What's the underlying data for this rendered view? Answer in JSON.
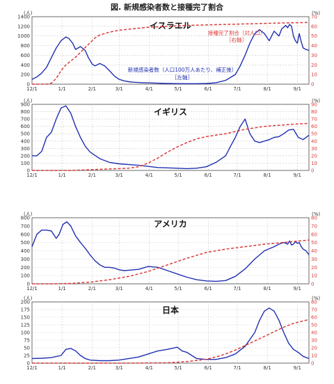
{
  "figure_title": "図. 新規感染者数と接種完了割合",
  "colors": {
    "cases": "#1f2fb0",
    "vaccination": "#d93a3a",
    "grid": "#c8c8c8",
    "axis": "#444444"
  },
  "chart_data": [
    {
      "type": "line",
      "title": "イスラエル",
      "left_unit": "(人)",
      "right_unit": "(%)",
      "x_ticks": [
        "12/1",
        "1/1",
        "2/1",
        "3/1",
        "4/1",
        "5/1",
        "6/1",
        "7/1",
        "8/1",
        "9/1"
      ],
      "ylim_left": [
        0,
        1400
      ],
      "yticks_left": [
        0,
        200,
        400,
        600,
        800,
        1000,
        1200,
        1400
      ],
      "ylim_right": [
        0,
        70
      ],
      "yticks_right": [
        0,
        10,
        20,
        30,
        40,
        50,
        60,
        70
      ],
      "annotations": [
        {
          "id": "vacc-label",
          "text": "接種完了割合（対人口）",
          "color": "vaccination"
        },
        {
          "id": "vacc-axis",
          "text": "［右軸］",
          "color": "vaccination"
        },
        {
          "id": "cases-label",
          "text": "新規感染者数（人口100万人あたり、補正後）",
          "color": "cases"
        },
        {
          "id": "cases-axis",
          "text": "［左軸］",
          "color": "cases"
        }
      ],
      "series": [
        {
          "axis": "left",
          "role": "cases",
          "x": [
            0,
            5,
            10,
            15,
            20,
            25,
            30,
            35,
            38,
            42,
            45,
            50,
            55,
            58,
            62,
            65,
            70,
            75,
            80,
            85,
            90,
            95,
            100,
            105,
            110,
            115,
            120,
            130,
            140,
            150,
            160,
            170,
            180,
            190,
            200,
            210,
            215,
            220,
            225,
            230,
            235,
            240,
            245,
            250,
            255,
            258,
            260,
            262,
            264,
            266,
            268,
            270,
            272,
            274,
            276,
            278,
            280,
            283,
            286
          ],
          "y": [
            100,
            150,
            230,
            350,
            550,
            750,
            900,
            980,
            950,
            850,
            720,
            780,
            700,
            560,
            420,
            380,
            430,
            380,
            280,
            170,
            100,
            70,
            50,
            40,
            35,
            30,
            28,
            20,
            15,
            12,
            10,
            10,
            15,
            30,
            80,
            200,
            380,
            600,
            850,
            1050,
            1130,
            1050,
            900,
            1100,
            1000,
            1150,
            1180,
            1220,
            1170,
            1240,
            1200,
            1000,
            900,
            850,
            1050,
            880,
            750,
            720,
            700
          ]
        },
        {
          "axis": "right",
          "role": "vaccination",
          "x": [
            0,
            15,
            20,
            25,
            30,
            35,
            40,
            45,
            50,
            55,
            60,
            65,
            70,
            80,
            90,
            100,
            110,
            120,
            140,
            160,
            180,
            200,
            220,
            240,
            260,
            286
          ],
          "y": [
            0,
            0,
            1,
            6,
            14,
            20,
            24,
            28,
            33,
            38,
            43,
            48,
            51,
            54,
            56,
            57,
            58,
            59,
            60,
            61,
            61.5,
            62,
            62.5,
            63,
            63.5,
            64
          ]
        }
      ]
    },
    {
      "type": "line",
      "title": "イギリス",
      "left_unit": "(人)",
      "right_unit": "(%)",
      "x_ticks": [
        "12/1",
        "1/1",
        "2/1",
        "3/1",
        "4/1",
        "5/1",
        "6/1",
        "7/1",
        "8/1",
        "9/1"
      ],
      "ylim_left": [
        0,
        900
      ],
      "yticks_left": [
        0,
        100,
        200,
        300,
        400,
        500,
        600,
        700,
        800,
        900
      ],
      "ylim_right": [
        0,
        90
      ],
      "yticks_right": [
        0,
        10,
        20,
        30,
        40,
        50,
        60,
        70,
        80,
        90
      ],
      "annotations": [],
      "series": [
        {
          "axis": "left",
          "role": "cases",
          "x": [
            0,
            5,
            10,
            15,
            20,
            25,
            30,
            35,
            40,
            45,
            50,
            55,
            60,
            70,
            80,
            90,
            100,
            110,
            120,
            130,
            140,
            150,
            160,
            170,
            180,
            190,
            200,
            205,
            210,
            215,
            220,
            225,
            230,
            235,
            240,
            245,
            250,
            255,
            260,
            265,
            270,
            275,
            280,
            286
          ],
          "y": [
            200,
            200,
            260,
            450,
            520,
            700,
            850,
            880,
            780,
            600,
            450,
            330,
            250,
            160,
            110,
            90,
            80,
            70,
            55,
            40,
            35,
            30,
            25,
            30,
            50,
            110,
            200,
            330,
            450,
            600,
            700,
            500,
            400,
            380,
            400,
            420,
            450,
            460,
            500,
            550,
            560,
            450,
            420,
            480
          ]
        },
        {
          "axis": "right",
          "role": "vaccination",
          "x": [
            0,
            40,
            60,
            80,
            100,
            110,
            120,
            130,
            140,
            150,
            160,
            170,
            180,
            190,
            200,
            210,
            220,
            230,
            240,
            250,
            260,
            270,
            286
          ],
          "y": [
            0,
            0,
            1,
            2,
            3,
            5,
            10,
            17,
            25,
            32,
            38,
            43,
            46,
            48,
            50,
            53,
            56,
            58,
            60,
            61,
            62,
            63,
            64
          ]
        }
      ]
    },
    {
      "type": "line",
      "title": "アメリカ",
      "left_unit": "(人)",
      "right_unit": "(%)",
      "x_ticks": [
        "12/1",
        "1/1",
        "2/1",
        "3/1",
        "4/1",
        "5/1",
        "6/1",
        "7/1",
        "8/1",
        "9/1"
      ],
      "ylim_left": [
        0,
        800
      ],
      "yticks_left": [
        0,
        100,
        200,
        300,
        400,
        500,
        600,
        700,
        800
      ],
      "ylim_right": [
        0,
        80
      ],
      "yticks_right": [
        0,
        10,
        20,
        30,
        40,
        50,
        60,
        70,
        80
      ],
      "annotations": [],
      "series": [
        {
          "axis": "left",
          "role": "cases",
          "x": [
            0,
            5,
            10,
            15,
            20,
            25,
            28,
            32,
            36,
            40,
            45,
            50,
            55,
            60,
            65,
            70,
            75,
            80,
            85,
            90,
            95,
            100,
            110,
            120,
            130,
            140,
            150,
            160,
            170,
            180,
            190,
            200,
            210,
            220,
            230,
            240,
            250,
            255,
            260,
            262,
            264,
            266,
            268,
            270,
            272,
            274,
            276,
            278,
            280,
            283,
            286
          ],
          "y": [
            450,
            600,
            650,
            650,
            640,
            550,
            600,
            720,
            750,
            700,
            580,
            500,
            430,
            350,
            280,
            230,
            200,
            200,
            190,
            170,
            160,
            165,
            175,
            210,
            200,
            160,
            120,
            80,
            50,
            35,
            30,
            40,
            90,
            180,
            300,
            400,
            450,
            480,
            500,
            490,
            480,
            520,
            470,
            480,
            510,
            490,
            500,
            450,
            420,
            400,
            350
          ]
        },
        {
          "axis": "right",
          "role": "vaccination",
          "x": [
            0,
            20,
            40,
            60,
            80,
            100,
            120,
            140,
            160,
            180,
            200,
            220,
            240,
            260,
            286
          ],
          "y": [
            0,
            0,
            0.5,
            2,
            5,
            9,
            15,
            23,
            31,
            38,
            42,
            45,
            48,
            50,
            53
          ]
        }
      ]
    },
    {
      "type": "line",
      "title": "日本",
      "left_unit": "(人)",
      "right_unit": "(%)",
      "x_ticks": [
        "12/1",
        "1/1",
        "2/1",
        "3/1",
        "4/1",
        "5/1",
        "6/1",
        "7/1",
        "8/1",
        "9/1"
      ],
      "ylim_left": [
        0,
        200
      ],
      "yticks_left": [
        0,
        25,
        50,
        75,
        100,
        125,
        150,
        175,
        200
      ],
      "ylim_right": [
        0,
        80
      ],
      "yticks_right": [
        0,
        10,
        20,
        30,
        40,
        50,
        60,
        70,
        80
      ],
      "annotations": [],
      "series": [
        {
          "axis": "left",
          "role": "cases",
          "x": [
            0,
            10,
            20,
            30,
            35,
            40,
            45,
            50,
            55,
            60,
            70,
            80,
            90,
            100,
            110,
            120,
            130,
            140,
            150,
            155,
            160,
            165,
            170,
            180,
            190,
            200,
            210,
            220,
            230,
            235,
            240,
            245,
            250,
            255,
            260,
            265,
            270,
            275,
            280,
            286
          ],
          "y": [
            15,
            16,
            18,
            25,
            45,
            48,
            40,
            25,
            15,
            10,
            8,
            8,
            10,
            15,
            20,
            30,
            40,
            45,
            52,
            40,
            35,
            25,
            15,
            12,
            12,
            18,
            30,
            55,
            100,
            140,
            170,
            180,
            170,
            140,
            100,
            65,
            45,
            35,
            22,
            15
          ]
        },
        {
          "axis": "right",
          "role": "vaccination",
          "x": [
            0,
            100,
            140,
            160,
            180,
            190,
            200,
            210,
            220,
            230,
            240,
            250,
            260,
            270,
            286
          ],
          "y": [
            0,
            0,
            0.5,
            2,
            5,
            8,
            12,
            17,
            23,
            29,
            35,
            41,
            47,
            52,
            57
          ]
        }
      ]
    }
  ]
}
